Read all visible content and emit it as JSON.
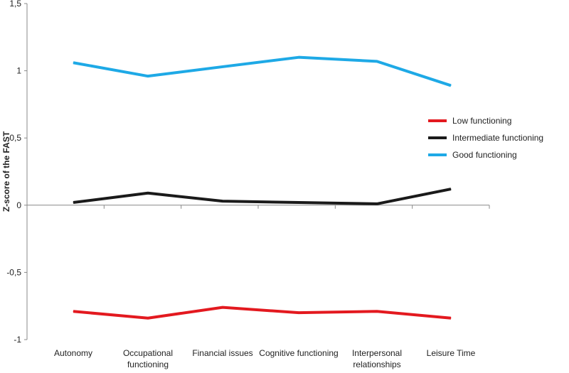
{
  "chart_data": {
    "type": "line",
    "title": "",
    "xlabel": "",
    "ylabel": "Z-score of the FAST",
    "ylim": [
      -1,
      1.5
    ],
    "yticks": [
      -1,
      -0.5,
      0,
      0.5,
      1,
      1.5
    ],
    "ytick_labels": [
      "-1",
      "-0,5",
      "0",
      "0,5",
      "1",
      "1,5"
    ],
    "categories": [
      [
        "Autonomy"
      ],
      [
        "Occupational",
        "functioning"
      ],
      [
        "Financial issues"
      ],
      [
        "Cognitive functioning"
      ],
      [
        "Interpersonal",
        "relationships"
      ],
      [
        "Leisure Time"
      ]
    ],
    "legend_position": "right",
    "series": [
      {
        "name": "Low functioning",
        "color": "#e3191f",
        "values": [
          -0.79,
          -0.84,
          -0.76,
          -0.8,
          -0.79,
          -0.84
        ]
      },
      {
        "name": "Intermediate functioning",
        "color": "#1a1a1a",
        "values": [
          0.02,
          0.09,
          0.03,
          0.02,
          0.01,
          0.12
        ]
      },
      {
        "name": "Good functioning",
        "color": "#1ea9e6",
        "values": [
          1.06,
          0.96,
          1.03,
          1.1,
          1.07,
          0.89
        ]
      }
    ]
  }
}
